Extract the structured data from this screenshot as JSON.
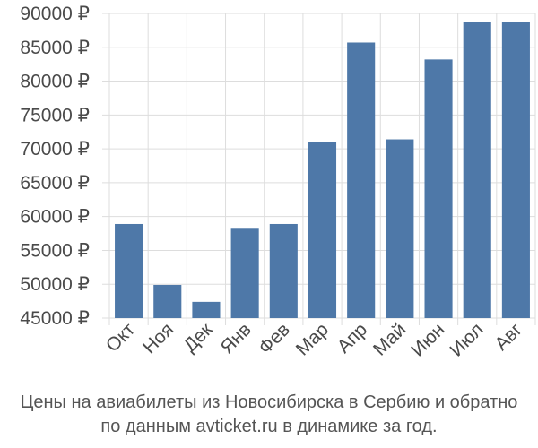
{
  "chart_data": {
    "type": "bar",
    "categories": [
      "Окт",
      "Ноя",
      "Дек",
      "Янв",
      "Фев",
      "Мар",
      "Апр",
      "Май",
      "Июн",
      "Июл",
      "Авг"
    ],
    "values": [
      58900,
      49900,
      47400,
      58200,
      58900,
      71000,
      85700,
      71400,
      83200,
      88800,
      88800
    ],
    "y_ticks": [
      "45000 ₽",
      "50000 ₽",
      "55000 ₽",
      "60000 ₽",
      "65000 ₽",
      "70000 ₽",
      "75000 ₽",
      "80000 ₽",
      "85000 ₽",
      "90000 ₽"
    ],
    "ylim": [
      45000,
      90000
    ],
    "grid": true,
    "bar_color": "#4e78a8",
    "grid_color": "#dddddd",
    "caption_line1": "Цены на авиабилеты из Новосибирска в Сербию и обратно",
    "caption_line2": "по данным avticket.ru в динамике за год."
  }
}
